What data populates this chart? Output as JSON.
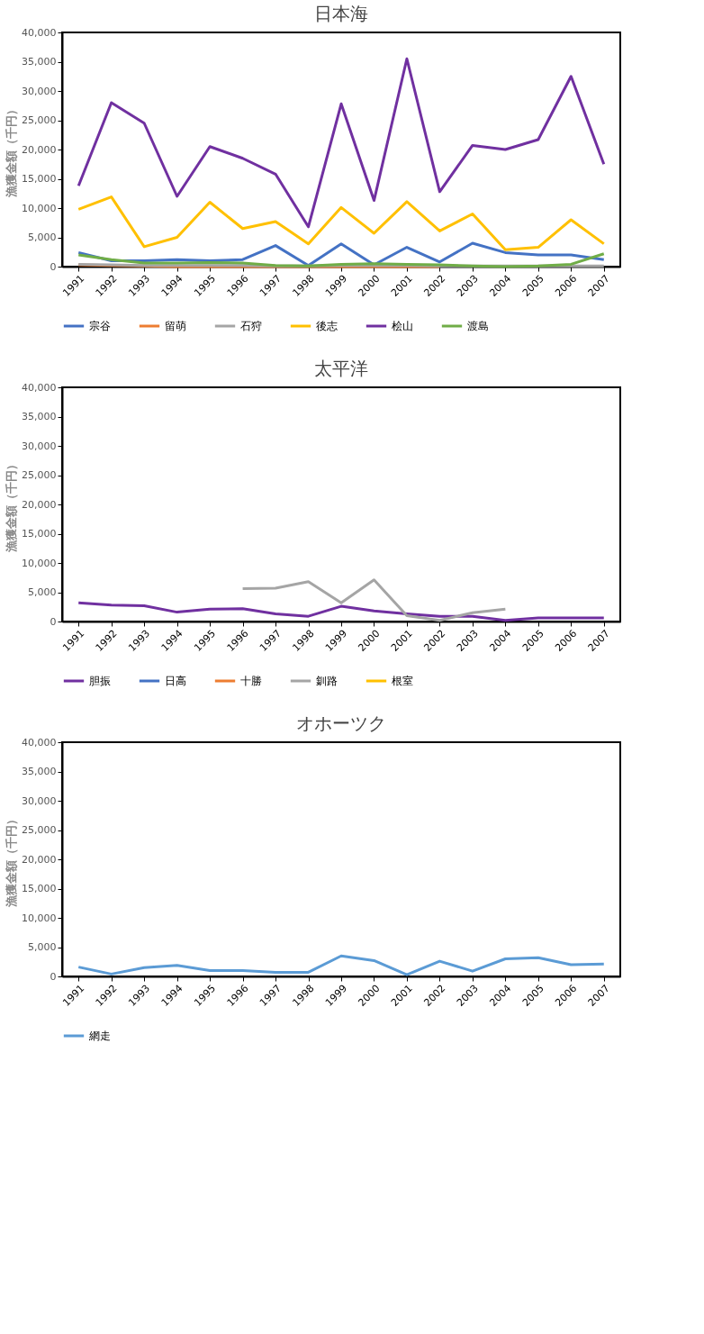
{
  "chart_data": [
    {
      "type": "line",
      "title": "日本海",
      "ylabel": "漁獲金額（千円）",
      "categories": [
        "1991",
        "1992",
        "1993",
        "1994",
        "1995",
        "1996",
        "1997",
        "1998",
        "1999",
        "2000",
        "2001",
        "2002",
        "2003",
        "2004",
        "2005",
        "2006",
        "2007"
      ],
      "ylim": [
        0,
        40000
      ],
      "yticks": [
        {
          "value": 0,
          "label": "0"
        },
        {
          "value": 5000,
          "label": "5,000"
        },
        {
          "value": 10000,
          "label": "10,000"
        },
        {
          "value": 15000,
          "label": "15,000"
        },
        {
          "value": 20000,
          "label": "20,000"
        },
        {
          "value": 25000,
          "label": "25,000"
        },
        {
          "value": 30000,
          "label": "30,000"
        },
        {
          "value": 35000,
          "label": "35,000"
        },
        {
          "value": 40000,
          "label": "40,000"
        }
      ],
      "grid": false,
      "legend": "bottom",
      "series": [
        {
          "name": "宗谷",
          "color": "#4472c4",
          "values": [
            2400,
            1000,
            1000,
            1200,
            1000,
            1200,
            3600,
            200,
            3900,
            300,
            3300,
            800,
            4000,
            2400,
            2000,
            2000,
            1200
          ]
        },
        {
          "name": "留萌",
          "color": "#ed7d31",
          "values": [
            300,
            200,
            100,
            0,
            0,
            0,
            0,
            0,
            0,
            0,
            0,
            0,
            null,
            null,
            null,
            null,
            null
          ]
        },
        {
          "name": "石狩",
          "color": "#a5a5a5",
          "values": [
            400,
            300,
            200,
            200,
            200,
            200,
            100,
            100,
            200,
            200,
            200,
            100,
            100,
            100,
            100,
            100,
            100
          ]
        },
        {
          "name": "後志",
          "color": "#ffc000",
          "values": [
            9800,
            11900,
            3400,
            5000,
            11000,
            6500,
            7700,
            3900,
            10100,
            5700,
            11100,
            6100,
            9000,
            2900,
            3300,
            8000,
            3900
          ]
        },
        {
          "name": "桧山",
          "color": "#7030a0",
          "values": [
            13800,
            28000,
            24500,
            12000,
            20500,
            18500,
            15800,
            6800,
            27800,
            11300,
            35500,
            12800,
            20700,
            20000,
            21700,
            32500,
            17500
          ]
        },
        {
          "name": "渡島",
          "color": "#70ad47",
          "values": [
            2000,
            1200,
            600,
            600,
            700,
            600,
            200,
            100,
            400,
            500,
            400,
            300,
            100,
            0,
            100,
            400,
            2200
          ]
        }
      ]
    },
    {
      "type": "line",
      "title": "太平洋",
      "ylabel": "漁獲金額（千円）",
      "categories": [
        "1991",
        "1992",
        "1993",
        "1994",
        "1995",
        "1996",
        "1997",
        "1998",
        "1999",
        "2000",
        "2001",
        "2002",
        "2003",
        "2004",
        "2005",
        "2006",
        "2007"
      ],
      "ylim": [
        0,
        40000
      ],
      "yticks": [
        {
          "value": 0,
          "label": "0"
        },
        {
          "value": 5000,
          "label": "5,000"
        },
        {
          "value": 10000,
          "label": "10,000"
        },
        {
          "value": 15000,
          "label": "15,000"
        },
        {
          "value": 20000,
          "label": "20,000"
        },
        {
          "value": 25000,
          "label": "25,000"
        },
        {
          "value": 30000,
          "label": "30,000"
        },
        {
          "value": 35000,
          "label": "35,000"
        },
        {
          "value": 40000,
          "label": "40,000"
        }
      ],
      "grid": false,
      "legend": "bottom",
      "series": [
        {
          "name": "胆振",
          "color": "#7030a0",
          "values": [
            3200,
            2800,
            2700,
            1600,
            2100,
            2200,
            1300,
            900,
            2600,
            1800,
            1300,
            900,
            900,
            200,
            600,
            600,
            600
          ]
        },
        {
          "name": "日高",
          "color": "#4472c4",
          "values": [
            null,
            null,
            null,
            null,
            null,
            null,
            null,
            null,
            null,
            null,
            null,
            null,
            null,
            null,
            null,
            null,
            null
          ]
        },
        {
          "name": "十勝",
          "color": "#ed7d31",
          "values": [
            null,
            null,
            null,
            null,
            null,
            null,
            null,
            null,
            null,
            null,
            null,
            null,
            null,
            null,
            null,
            null,
            null
          ]
        },
        {
          "name": "釧路",
          "color": "#a5a5a5",
          "values": [
            null,
            null,
            null,
            null,
            null,
            5600,
            5700,
            6800,
            3200,
            7100,
            1000,
            200,
            1500,
            2100,
            null,
            null,
            null
          ]
        },
        {
          "name": "根室",
          "color": "#ffc000",
          "values": [
            null,
            null,
            null,
            null,
            null,
            null,
            null,
            null,
            null,
            null,
            null,
            null,
            null,
            null,
            null,
            null,
            null
          ]
        }
      ]
    },
    {
      "type": "line",
      "title": "オホーツク",
      "ylabel": "漁獲金額（千円）",
      "categories": [
        "1991",
        "1992",
        "1993",
        "1994",
        "1995",
        "1996",
        "1997",
        "1998",
        "1999",
        "2000",
        "2001",
        "2002",
        "2003",
        "2004",
        "2005",
        "2006",
        "2007"
      ],
      "ylim": [
        0,
        40000
      ],
      "yticks": [
        {
          "value": 0,
          "label": "0"
        },
        {
          "value": 5000,
          "label": "5,000"
        },
        {
          "value": 10000,
          "label": "10,000"
        },
        {
          "value": 15000,
          "label": "15,000"
        },
        {
          "value": 20000,
          "label": "20,000"
        },
        {
          "value": 25000,
          "label": "25,000"
        },
        {
          "value": 30000,
          "label": "30,000"
        },
        {
          "value": 35000,
          "label": "35,000"
        },
        {
          "value": 40000,
          "label": "40,000"
        }
      ],
      "grid": false,
      "legend": "bottom",
      "series": [
        {
          "name": "網走",
          "color": "#5b9bd5",
          "values": [
            1600,
            400,
            1500,
            1900,
            1000,
            1000,
            700,
            700,
            3500,
            2700,
            300,
            2600,
            900,
            3000,
            3200,
            2000,
            2100
          ]
        }
      ]
    }
  ]
}
